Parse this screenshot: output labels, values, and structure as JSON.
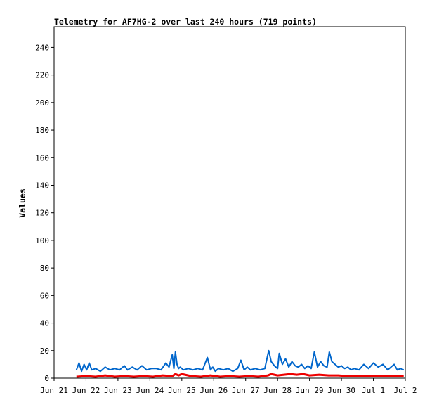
{
  "chart_data": {
    "type": "line",
    "title": "Telemetry for AF7HG-2 over last 240 hours (719 points)",
    "xlabel": "",
    "ylabel": "Values",
    "x_tick_labels": [
      "Jun 21",
      "Jun 22",
      "Jun 23",
      "Jun 24",
      "Jun 25",
      "Jun 26",
      "Jun 27",
      "Jun 28",
      "Jun 29",
      "Jun 30",
      "Jul 1",
      "Jul 2"
    ],
    "xlim": [
      "Jun 21",
      "Jul 2"
    ],
    "ylim": [
      0,
      255
    ],
    "y_ticks": [
      0,
      20,
      40,
      60,
      80,
      100,
      120,
      140,
      160,
      180,
      200,
      220,
      240
    ],
    "grid": false,
    "legend": "none",
    "series": [
      {
        "color": "#0066cc",
        "x_days": [
          0.7,
          0.78,
          0.86,
          0.94,
          1.02,
          1.1,
          1.18,
          1.3,
          1.45,
          1.6,
          1.75,
          1.9,
          2.05,
          2.2,
          2.3,
          2.45,
          2.6,
          2.75,
          2.9,
          3.05,
          3.2,
          3.35,
          3.5,
          3.6,
          3.7,
          3.75,
          3.8,
          3.85,
          3.9,
          3.95,
          4.05,
          4.2,
          4.35,
          4.5,
          4.65,
          4.8,
          4.9,
          4.97,
          5.05,
          5.15,
          5.3,
          5.45,
          5.6,
          5.75,
          5.85,
          5.95,
          6.05,
          6.15,
          6.3,
          6.45,
          6.6,
          6.72,
          6.8,
          6.9,
          7.0,
          7.05,
          7.15,
          7.25,
          7.35,
          7.45,
          7.55,
          7.65,
          7.75,
          7.85,
          7.95,
          8.05,
          8.15,
          8.25,
          8.35,
          8.45,
          8.55,
          8.62,
          8.7,
          8.8,
          8.9,
          9.0,
          9.1,
          9.2,
          9.3,
          9.4,
          9.55,
          9.7,
          9.85,
          10.0,
          10.15,
          10.3,
          10.45,
          10.55,
          10.65,
          10.75,
          10.85,
          10.95
        ],
        "values": [
          6,
          11,
          5,
          10,
          6,
          11,
          6,
          7,
          5,
          8,
          6,
          7,
          6,
          9,
          6,
          8,
          6,
          9,
          6,
          7,
          7,
          6,
          11,
          8,
          17,
          7,
          19,
          10,
          7,
          8,
          6,
          7,
          6,
          7,
          6,
          15,
          6,
          8,
          5,
          7,
          6,
          7,
          5,
          7,
          13,
          6,
          8,
          6,
          7,
          6,
          7,
          20,
          12,
          9,
          7,
          18,
          10,
          14,
          8,
          12,
          9,
          8,
          10,
          7,
          9,
          7,
          19,
          8,
          12,
          9,
          8,
          19,
          12,
          10,
          8,
          9,
          7,
          8,
          6,
          7,
          6,
          10,
          7,
          11,
          8,
          10,
          6,
          8,
          10,
          6,
          7,
          6
        ]
      },
      {
        "color": "#ee0000",
        "x_days": [
          0.7,
          1.0,
          1.3,
          1.6,
          1.9,
          2.2,
          2.5,
          2.8,
          3.1,
          3.4,
          3.7,
          3.8,
          3.9,
          4.0,
          4.3,
          4.6,
          4.9,
          5.2,
          5.5,
          5.8,
          6.1,
          6.4,
          6.7,
          6.8,
          7.0,
          7.2,
          7.4,
          7.6,
          7.8,
          8.0,
          8.3,
          8.6,
          8.9,
          9.2,
          9.5,
          9.8,
          10.1,
          10.4,
          10.7,
          10.95
        ],
        "values": [
          1,
          1.5,
          1,
          2,
          1,
          1.5,
          1,
          1.5,
          1,
          2,
          1.5,
          3,
          2,
          3,
          1.5,
          1,
          2,
          1,
          1.5,
          1,
          1.5,
          1,
          2,
          3,
          2,
          2.5,
          3,
          2.5,
          3,
          2,
          2.5,
          2,
          2,
          1.5,
          1.5,
          1.5,
          1.5,
          1.5,
          1.5,
          1.5
        ]
      }
    ]
  }
}
